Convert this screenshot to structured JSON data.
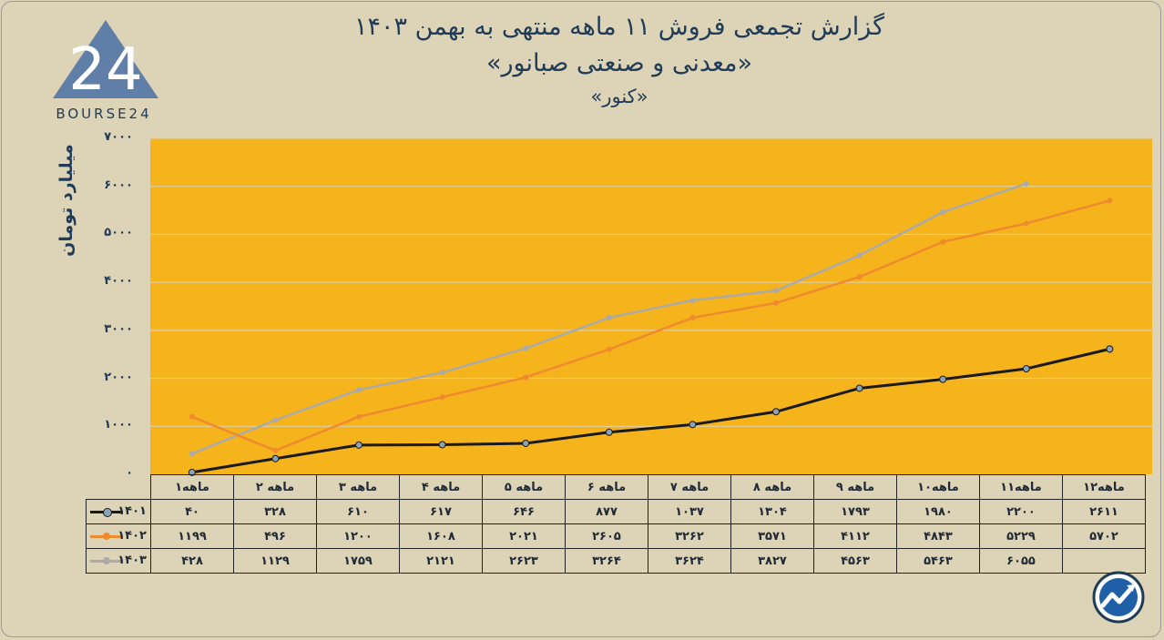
{
  "header": {
    "title_line1": "گزارش تجمعی فروش ۱۱ ماهه منتهی به بهمن ۱۴۰۳",
    "title_line2": "«معدنی و صنعتی صبانور»",
    "title_line3": "«کنور»"
  },
  "logo": {
    "text": "BOURSE24",
    "mark": "24",
    "icon": "triangle-24-logo"
  },
  "brand_icon": "trend-arrow-icon",
  "chart_data": {
    "type": "line",
    "ylabel": "میلیارد تومان",
    "ylim": [
      0,
      7000
    ],
    "yticks": [
      "۰",
      "۱۰۰۰",
      "۲۰۰۰",
      "۳۰۰۰",
      "۴۰۰۰",
      "۵۰۰۰",
      "۶۰۰۰",
      "۷۰۰۰"
    ],
    "ytick_values": [
      0,
      1000,
      2000,
      3000,
      4000,
      5000,
      6000,
      7000
    ],
    "grid": true,
    "plot_bg": "#f5b31c",
    "categories": [
      "۱ماهه",
      "۲ ماهه",
      "۳ ماهه",
      "۴ ماهه",
      "۵ ماهه",
      "۶ ماهه",
      "۷ ماهه",
      "۸ ماهه",
      "۹ ماهه",
      "۱۰ماهه",
      "۱۱ماهه",
      "۱۲ماهه"
    ],
    "series": [
      {
        "name": "۱۴۰۱",
        "color": "#1a1a1a",
        "values": [
          40,
          328,
          610,
          617,
          646,
          877,
          1037,
          1304,
          1793,
          1980,
          2200,
          2611
        ],
        "labels": [
          "۴۰",
          "۳۲۸",
          "۶۱۰",
          "۶۱۷",
          "۶۴۶",
          "۸۷۷",
          "۱۰۳۷",
          "۱۳۰۴",
          "۱۷۹۳",
          "۱۹۸۰",
          "۲۲۰۰",
          "۲۶۱۱"
        ]
      },
      {
        "name": "۱۴۰۲",
        "color": "#ef8a2e",
        "values": [
          1199,
          496,
          1200,
          1608,
          2021,
          2605,
          3262,
          3571,
          4112,
          4843,
          5229,
          5702
        ],
        "labels": [
          "۱۱۹۹",
          "۴۹۶",
          "۱۲۰۰",
          "۱۶۰۸",
          "۲۰۲۱",
          "۲۶۰۵",
          "۳۲۶۲",
          "۳۵۷۱",
          "۴۱۱۲",
          "۴۸۴۳",
          "۵۲۲۹",
          "۵۷۰۲"
        ]
      },
      {
        "name": "۱۴۰۳",
        "color": "#aaaaaa",
        "values": [
          428,
          1129,
          1759,
          2121,
          2623,
          3264,
          3624,
          3827,
          4563,
          5463,
          6055,
          null
        ],
        "labels": [
          "۴۲۸",
          "۱۱۲۹",
          "۱۷۵۹",
          "۲۱۲۱",
          "۲۶۲۳",
          "۳۲۶۴",
          "۳۶۲۴",
          "۳۸۲۷",
          "۴۵۶۳",
          "۵۴۶۳",
          "۶۰۵۵",
          ""
        ]
      }
    ]
  }
}
